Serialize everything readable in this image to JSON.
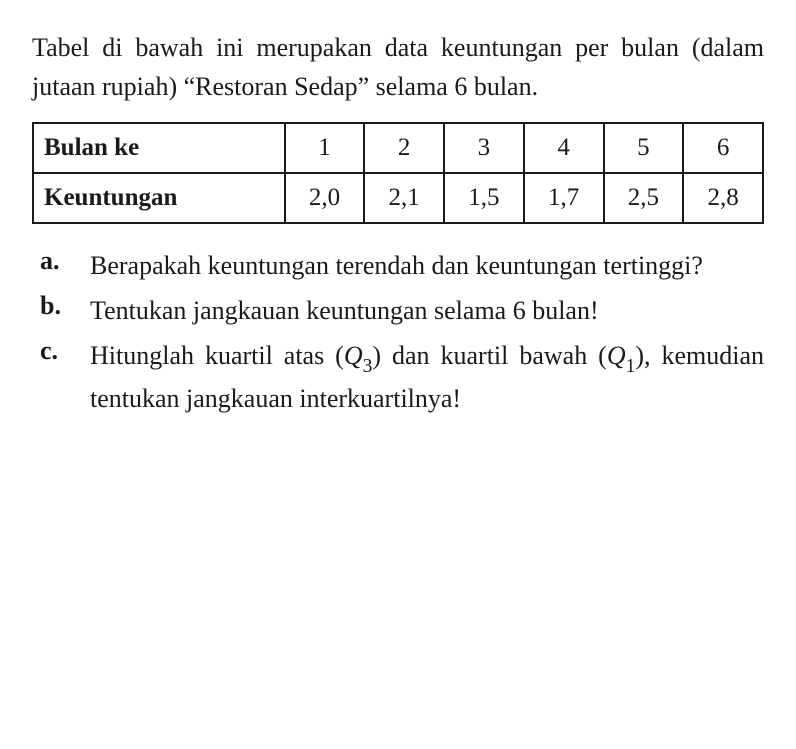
{
  "intro": "Tabel di bawah ini merupakan data keuntungan per bulan (dalam jutaan rupiah) “Restoran Sedap” selama 6 bulan.",
  "table": {
    "row1_label": "Bulan ke",
    "row2_label": "Keuntungan",
    "months": [
      "1",
      "2",
      "3",
      "4",
      "5",
      "6"
    ],
    "profits": [
      "2,0",
      "2,1",
      "1,5",
      "1,7",
      "2,5",
      "2,8"
    ],
    "border_color": "#1a1a1a",
    "background": "#ffffff"
  },
  "questions": {
    "a": {
      "label": "a.",
      "text": "Berapakah keuntungan terendah dan keuntungan tertinggi?"
    },
    "b": {
      "label": "b.",
      "text": "Tentukan jangkauan keuntungan selama 6 bulan!"
    },
    "c": {
      "label": "c.",
      "pre": "Hitunglah kuartil atas (",
      "q3_sym": "Q",
      "q3_sub": "3",
      "mid": ") dan kuartil bawah (",
      "q1_sym": "Q",
      "q1_sub": "1",
      "post": "), kemudian tentukan jangkauan interkuartilnya!"
    }
  },
  "style": {
    "font_color": "#1a1a1a",
    "background_color": "#ffffff",
    "body_fontsize": 26,
    "table_fontsize": 25
  }
}
